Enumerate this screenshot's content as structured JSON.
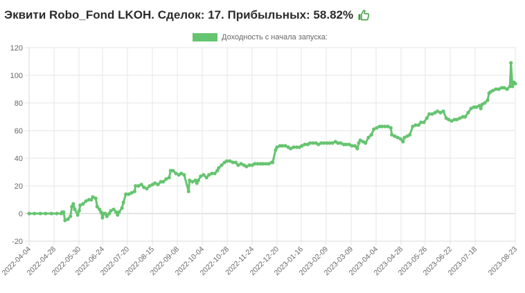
{
  "header": {
    "title": "Эквити Robo_Fond LKOH. Сделок: 17. Прибыльных: 58.82%",
    "icon": "thumbs-up-icon",
    "icon_color": "#3a9a3a"
  },
  "legend": {
    "label": "Доходность с начала запуска:",
    "color": "#65c46f"
  },
  "chart_data": {
    "type": "line",
    "title": "Эквити Robo_Fond LKOH. Сделок: 17. Прибыльных: 58.82%",
    "xlabel": "",
    "ylabel": "",
    "ylim": [
      -20,
      120
    ],
    "yticks": [
      -20,
      0,
      20,
      40,
      60,
      80,
      100,
      120
    ],
    "grid": true,
    "legend_position": "top",
    "categories": [
      "2022-04-04",
      "2022-04-28",
      "2022-05-30",
      "2022-06-24",
      "2022-07-20",
      "2022-08-15",
      "2022-09-08",
      "2022-10-04",
      "2022-10-28",
      "2022-11-24",
      "2022-12-20",
      "2023-01-16",
      "2023-02-09",
      "2023-03-09",
      "2023-04-04",
      "2023-04-28",
      "2023-05-26",
      "2023-06-22",
      "2023-07-18",
      "2023-08-23"
    ],
    "category_positions": [
      0,
      0.0513,
      0.1026,
      0.151,
      0.2023,
      0.2536,
      0.3048,
      0.3561,
      0.4074,
      0.4587,
      0.51,
      0.5598,
      0.6111,
      0.6624,
      0.7137,
      0.765,
      0.8148,
      0.8661,
      0.9174,
      1.0
    ],
    "series": [
      {
        "name": "Доходность с начала запуска:",
        "color": "#65c46f",
        "points": [
          [
            0,
            0
          ],
          [
            0.011,
            0
          ],
          [
            0.023,
            0
          ],
          [
            0.034,
            0
          ],
          [
            0.046,
            0
          ],
          [
            0.057,
            0
          ],
          [
            0.066,
            0
          ],
          [
            0.068,
            1
          ],
          [
            0.071,
            1
          ],
          [
            0.074,
            -5
          ],
          [
            0.08,
            -4
          ],
          [
            0.085,
            -2
          ],
          [
            0.088,
            5
          ],
          [
            0.091,
            7
          ],
          [
            0.094,
            3
          ],
          [
            0.1,
            -1
          ],
          [
            0.103,
            2
          ],
          [
            0.105,
            6
          ],
          [
            0.111,
            7
          ],
          [
            0.117,
            9
          ],
          [
            0.123,
            10
          ],
          [
            0.128,
            10
          ],
          [
            0.131,
            12
          ],
          [
            0.137,
            11
          ],
          [
            0.14,
            5
          ],
          [
            0.145,
            3
          ],
          [
            0.148,
            1
          ],
          [
            0.151,
            -3
          ],
          [
            0.154,
            0
          ],
          [
            0.157,
            0
          ],
          [
            0.16,
            -2
          ],
          [
            0.165,
            0
          ],
          [
            0.168,
            2
          ],
          [
            0.174,
            3
          ],
          [
            0.179,
            1
          ],
          [
            0.182,
            -1
          ],
          [
            0.185,
            1
          ],
          [
            0.191,
            4
          ],
          [
            0.194,
            8
          ],
          [
            0.199,
            14
          ],
          [
            0.205,
            14
          ],
          [
            0.211,
            15
          ],
          [
            0.217,
            16
          ],
          [
            0.219,
            20
          ],
          [
            0.225,
            20
          ],
          [
            0.231,
            21
          ],
          [
            0.236,
            19
          ],
          [
            0.242,
            18
          ],
          [
            0.248,
            20
          ],
          [
            0.254,
            21
          ],
          [
            0.259,
            22
          ],
          [
            0.265,
            21
          ],
          [
            0.271,
            23
          ],
          [
            0.276,
            23
          ],
          [
            0.282,
            25
          ],
          [
            0.288,
            26
          ],
          [
            0.291,
            31
          ],
          [
            0.296,
            31
          ],
          [
            0.302,
            29
          ],
          [
            0.308,
            28
          ],
          [
            0.313,
            29
          ],
          [
            0.319,
            28
          ],
          [
            0.328,
            16
          ],
          [
            0.33,
            24
          ],
          [
            0.336,
            23
          ],
          [
            0.342,
            24
          ],
          [
            0.345,
            22
          ],
          [
            0.348,
            24
          ],
          [
            0.353,
            27
          ],
          [
            0.359,
            28
          ],
          [
            0.365,
            26
          ],
          [
            0.37,
            28
          ],
          [
            0.376,
            29
          ],
          [
            0.382,
            29
          ],
          [
            0.387,
            31
          ],
          [
            0.39,
            33
          ],
          [
            0.396,
            35
          ],
          [
            0.402,
            37
          ],
          [
            0.407,
            38
          ],
          [
            0.413,
            38
          ],
          [
            0.419,
            37
          ],
          [
            0.425,
            37
          ],
          [
            0.43,
            35
          ],
          [
            0.436,
            36
          ],
          [
            0.442,
            35
          ],
          [
            0.447,
            34
          ],
          [
            0.453,
            35
          ],
          [
            0.459,
            35
          ],
          [
            0.464,
            36
          ],
          [
            0.47,
            36
          ],
          [
            0.476,
            36
          ],
          [
            0.481,
            36
          ],
          [
            0.487,
            36
          ],
          [
            0.493,
            36
          ],
          [
            0.499,
            37
          ],
          [
            0.501,
            37
          ],
          [
            0.507,
            46
          ],
          [
            0.51,
            48
          ],
          [
            0.516,
            49
          ],
          [
            0.521,
            49
          ],
          [
            0.527,
            49
          ],
          [
            0.533,
            48
          ],
          [
            0.538,
            47
          ],
          [
            0.544,
            48
          ],
          [
            0.55,
            48
          ],
          [
            0.556,
            48
          ],
          [
            0.561,
            49
          ],
          [
            0.567,
            50
          ],
          [
            0.573,
            50
          ],
          [
            0.578,
            51
          ],
          [
            0.584,
            51
          ],
          [
            0.59,
            51
          ],
          [
            0.595,
            50
          ],
          [
            0.601,
            51
          ],
          [
            0.607,
            51
          ],
          [
            0.613,
            51
          ],
          [
            0.618,
            51
          ],
          [
            0.624,
            51
          ],
          [
            0.63,
            52
          ],
          [
            0.635,
            51
          ],
          [
            0.641,
            51
          ],
          [
            0.647,
            50
          ],
          [
            0.652,
            50
          ],
          [
            0.658,
            50
          ],
          [
            0.664,
            49
          ],
          [
            0.67,
            49
          ],
          [
            0.675,
            47
          ],
          [
            0.678,
            51
          ],
          [
            0.681,
            53
          ],
          [
            0.687,
            52
          ],
          [
            0.692,
            51
          ],
          [
            0.698,
            55
          ],
          [
            0.704,
            57
          ],
          [
            0.709,
            61
          ],
          [
            0.715,
            62
          ],
          [
            0.721,
            63
          ],
          [
            0.726,
            63
          ],
          [
            0.732,
            63
          ],
          [
            0.738,
            63
          ],
          [
            0.744,
            62
          ],
          [
            0.746,
            57
          ],
          [
            0.752,
            56
          ],
          [
            0.758,
            55
          ],
          [
            0.764,
            54
          ],
          [
            0.769,
            52
          ],
          [
            0.772,
            55
          ],
          [
            0.778,
            56
          ],
          [
            0.783,
            57
          ],
          [
            0.789,
            63
          ],
          [
            0.795,
            64
          ],
          [
            0.801,
            64
          ],
          [
            0.806,
            66
          ],
          [
            0.812,
            66
          ],
          [
            0.818,
            69
          ],
          [
            0.823,
            72
          ],
          [
            0.829,
            72
          ],
          [
            0.835,
            73
          ],
          [
            0.84,
            74
          ],
          [
            0.846,
            73
          ],
          [
            0.852,
            74
          ],
          [
            0.858,
            69
          ],
          [
            0.863,
            68
          ],
          [
            0.869,
            67
          ],
          [
            0.875,
            68
          ],
          [
            0.88,
            68
          ],
          [
            0.886,
            69
          ],
          [
            0.892,
            70
          ],
          [
            0.897,
            70
          ],
          [
            0.903,
            73
          ],
          [
            0.909,
            76
          ],
          [
            0.915,
            77
          ],
          [
            0.92,
            77
          ],
          [
            0.926,
            78
          ],
          [
            0.929,
            76
          ],
          [
            0.932,
            79
          ],
          [
            0.937,
            80
          ],
          [
            0.943,
            82
          ],
          [
            0.946,
            87
          ],
          [
            0.949,
            88
          ],
          [
            0.954,
            89
          ],
          [
            0.96,
            90
          ],
          [
            0.966,
            90
          ],
          [
            0.972,
            91
          ],
          [
            0.977,
            91
          ],
          [
            0.983,
            90
          ],
          [
            0.989,
            92
          ],
          [
            0.991,
            109
          ],
          [
            0.994,
            92
          ],
          [
            0.997,
            95
          ],
          [
            1.0,
            94
          ]
        ]
      }
    ]
  }
}
